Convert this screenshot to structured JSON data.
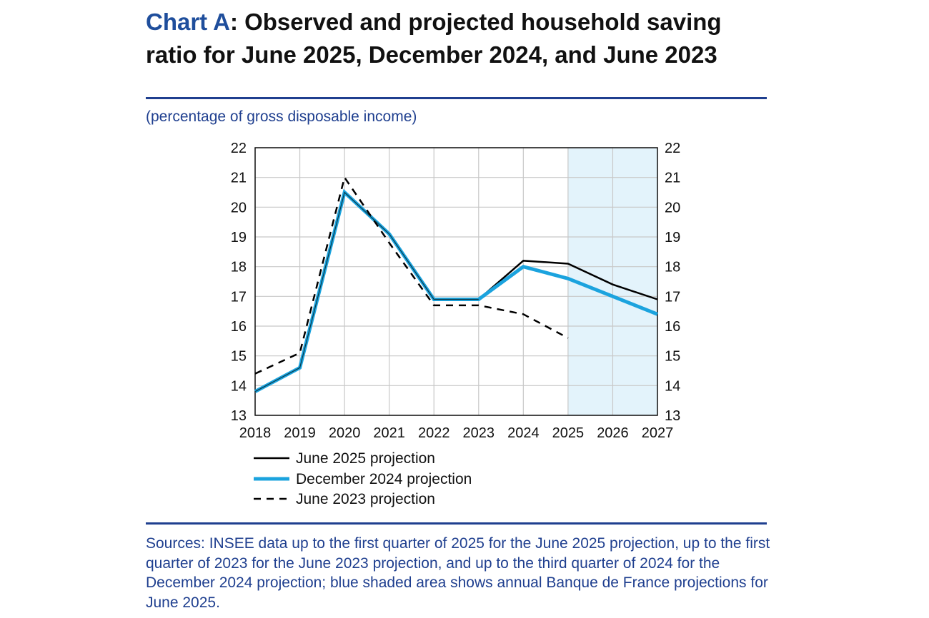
{
  "title": {
    "lead": "Chart A",
    "rest": ": Observed and projected household saving ratio for June 2025, December 2024, and June 2023"
  },
  "subtitle": "(percentage of gross disposable income)",
  "sources": "Sources: INSEE data up to the first quarter of 2025 for the June 2025 projection, up to the first quarter of 2023 for the June 2023 projection, and up to the third quarter of 2024 for the December 2024 projection; blue shaded area shows annual Banque de France projections for June 2025.",
  "colors": {
    "brand": "#1f3f8f",
    "june2025": "#000000",
    "dec2024": "#1ba3de",
    "june2023": "#000000",
    "shade": "#e3f3fb",
    "grid": "#c8c8c8"
  },
  "chart_data": {
    "type": "line",
    "title": "Observed and projected household saving ratio for June 2025, December 2024, and June 2023",
    "ylabel": "percentage of gross disposable income",
    "xlabel": "",
    "x": [
      2018,
      2019,
      2020,
      2021,
      2022,
      2023,
      2024,
      2025,
      2026,
      2027
    ],
    "ylim": [
      13,
      22
    ],
    "yticks": [
      13,
      14,
      15,
      16,
      17,
      18,
      19,
      20,
      21,
      22
    ],
    "grid": true,
    "dual_y_axis": true,
    "shaded_x_range": [
      2025,
      2027
    ],
    "series": [
      {
        "name": "June 2025 projection",
        "style": "solid",
        "x": [
          2018,
          2019,
          2020,
          2021,
          2022,
          2023,
          2024,
          2025,
          2026,
          2027
        ],
        "values": [
          13.8,
          14.6,
          20.5,
          19.1,
          16.9,
          16.9,
          18.2,
          18.1,
          17.4,
          16.9
        ]
      },
      {
        "name": "December 2024 projection",
        "style": "thick",
        "x": [
          2018,
          2019,
          2020,
          2021,
          2022,
          2023,
          2024,
          2025,
          2026,
          2027
        ],
        "values": [
          13.8,
          14.6,
          20.5,
          19.1,
          16.9,
          16.9,
          18.0,
          17.6,
          17.0,
          16.4
        ]
      },
      {
        "name": "June 2023 projection",
        "style": "dashed",
        "x": [
          2018,
          2019,
          2020,
          2021,
          2022,
          2023,
          2024,
          2025
        ],
        "values": [
          14.4,
          15.1,
          21.0,
          18.8,
          16.7,
          16.7,
          16.4,
          15.6
        ]
      }
    ]
  }
}
